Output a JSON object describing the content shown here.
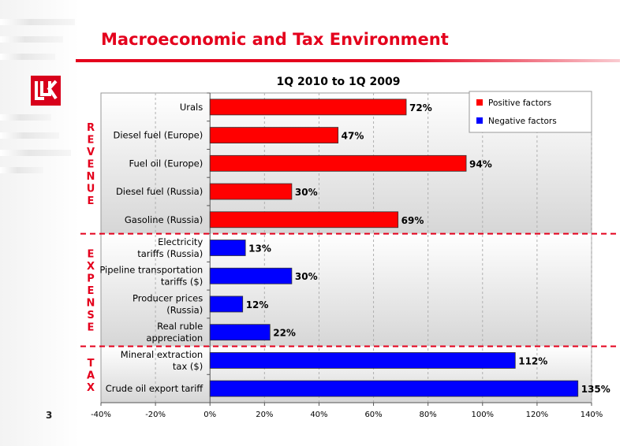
{
  "slide": {
    "title": "Macroeconomic and Tax Environment",
    "page_number": "3",
    "brand_color": "#e4001c"
  },
  "chart_data": {
    "type": "bar",
    "orientation": "horizontal",
    "title": "1Q 2010 to 1Q 2009",
    "xlim": [
      -40,
      140
    ],
    "xticks": [
      "-40%",
      "-20%",
      "0%",
      "20%",
      "40%",
      "60%",
      "80%",
      "100%",
      "120%",
      "140%"
    ],
    "grid": true,
    "legend_position": "top-right",
    "legend": [
      {
        "label": "Positive factors",
        "color": "#ff0000"
      },
      {
        "label": "Negative factors",
        "color": "#0000ff"
      }
    ],
    "groups": [
      {
        "name": "REVENUE",
        "label_letters": [
          "R",
          "E",
          "V",
          "E",
          "N",
          "U",
          "E"
        ]
      },
      {
        "name": "EXPENSE",
        "label_letters": [
          "E",
          "X",
          "P",
          "E",
          "N",
          "S",
          "E"
        ]
      },
      {
        "name": "TAX",
        "label_letters": [
          "T",
          "A",
          "X"
        ]
      }
    ],
    "bars": [
      {
        "label": [
          "Urals"
        ],
        "value": 72,
        "value_label": "72%",
        "color": "#ff0000",
        "group": "REVENUE"
      },
      {
        "label": [
          "Diesel fuel (Europe)"
        ],
        "value": 47,
        "value_label": "47%",
        "color": "#ff0000",
        "group": "REVENUE"
      },
      {
        "label": [
          "Fuel oil (Europe)"
        ],
        "value": 94,
        "value_label": "94%",
        "color": "#ff0000",
        "group": "REVENUE"
      },
      {
        "label": [
          "Diesel fuel (Russia)"
        ],
        "value": 30,
        "value_label": "30%",
        "color": "#ff0000",
        "group": "REVENUE"
      },
      {
        "label": [
          "Gasoline (Russia)"
        ],
        "value": 69,
        "value_label": "69%",
        "color": "#ff0000",
        "group": "REVENUE"
      },
      {
        "label": [
          "Electricity",
          "tariffs (Russia)"
        ],
        "value": 13,
        "value_label": "13%",
        "color": "#0000ff",
        "group": "EXPENSE"
      },
      {
        "label": [
          "Pipeline transportation",
          "tariffs ($)"
        ],
        "value": 30,
        "value_label": "30%",
        "color": "#0000ff",
        "group": "EXPENSE"
      },
      {
        "label": [
          "Producer prices",
          "(Russia)"
        ],
        "value": 12,
        "value_label": "12%",
        "color": "#0000ff",
        "group": "EXPENSE"
      },
      {
        "label": [
          "Real ruble",
          "appreciation"
        ],
        "value": 22,
        "value_label": "22%",
        "color": "#0000ff",
        "group": "EXPENSE"
      },
      {
        "label": [
          "Mineral extraction",
          "tax ($)"
        ],
        "value": 112,
        "value_label": "112%",
        "color": "#0000ff",
        "group": "TAX"
      },
      {
        "label": [
          "Crude oil export tariff"
        ],
        "value": 135,
        "value_label": "135%",
        "color": "#0000ff",
        "group": "TAX"
      }
    ]
  }
}
